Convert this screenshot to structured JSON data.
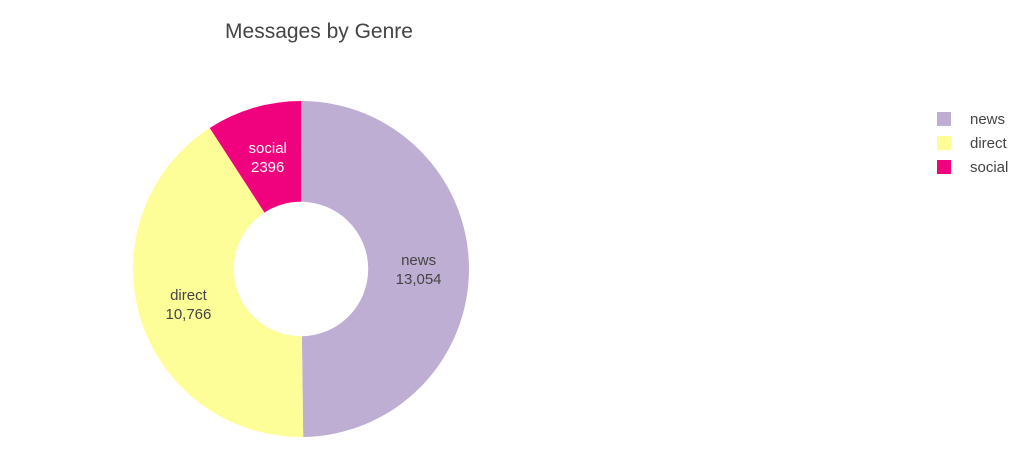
{
  "chart_data": {
    "type": "pie",
    "title": "Messages by Genre",
    "hole": 0.4,
    "legend_position": "top-right",
    "slices": [
      {
        "label": "news",
        "value": 13054,
        "value_text": "13,054",
        "color": "#bfaed4",
        "text_color": "#444444"
      },
      {
        "label": "direct",
        "value": 10766,
        "value_text": "10,766",
        "color": "#fefe99",
        "text_color": "#444444"
      },
      {
        "label": "social",
        "value": 2396,
        "value_text": "2396",
        "color": "#f0027f",
        "text_color": "#ffffff"
      }
    ]
  }
}
